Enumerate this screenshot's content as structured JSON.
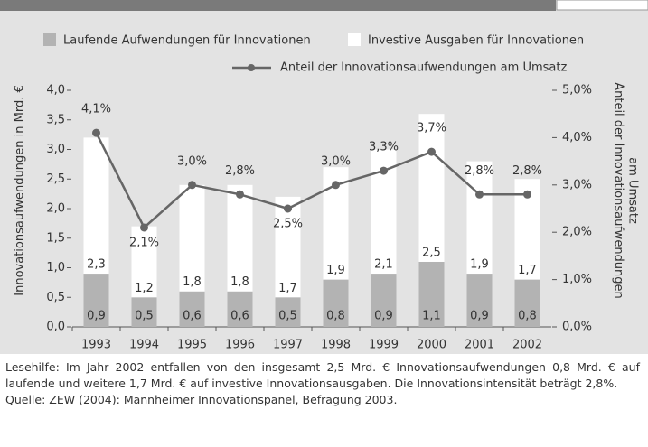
{
  "chart_data": {
    "type": "bar",
    "categories": [
      "1993",
      "1994",
      "1995",
      "1996",
      "1997",
      "1998",
      "1999",
      "2000",
      "2001",
      "2002"
    ],
    "series": [
      {
        "name": "Laufende Aufwendungen für Innovationen",
        "color": "#b3b3b3",
        "stack": true,
        "values": [
          0.9,
          0.5,
          0.6,
          0.6,
          0.5,
          0.8,
          0.9,
          1.1,
          0.9,
          0.8
        ],
        "value_labels": [
          "0,9",
          "0,5",
          "0,6",
          "0,6",
          "0,5",
          "0,8",
          "0,9",
          "1,1",
          "0,9",
          "0,8"
        ]
      },
      {
        "name": "Investive Ausgaben für Innovationen",
        "color": "#ffffff",
        "stack": true,
        "values": [
          2.3,
          1.2,
          1.8,
          1.8,
          1.7,
          1.9,
          2.1,
          2.5,
          1.9,
          1.7
        ],
        "value_labels": [
          "2,3",
          "1,2",
          "1,8",
          "1,8",
          "1,7",
          "1,9",
          "2,1",
          "2,5",
          "1,9",
          "1,7"
        ]
      },
      {
        "name": "Anteil der Innovationsaufwendungen am Umsatz",
        "color": "#666666",
        "type": "line",
        "axis": "y2",
        "values": [
          4.1,
          2.1,
          3.0,
          2.8,
          2.5,
          3.0,
          3.3,
          3.7,
          2.8,
          2.8
        ],
        "value_labels": [
          "4,1%",
          "2,1%",
          "3,0%",
          "2,8%",
          "2,5%",
          "3,0%",
          "3,3%",
          "3,7%",
          "2,8%",
          "2,8%"
        ]
      }
    ],
    "ylabel": "Innovationsaufwendungen in Mrd. €",
    "y2label": [
      "Anteil der Innovationsaufwendungen",
      "am Umsatz"
    ],
    "ylim": [
      0,
      4
    ],
    "yticks": [
      {
        "value": 0,
        "label": "0,0"
      },
      {
        "value": 0.5,
        "label": "0,5"
      },
      {
        "value": 1,
        "label": "1,0"
      },
      {
        "value": 1.5,
        "label": "1,5"
      },
      {
        "value": 2,
        "label": "2,0"
      },
      {
        "value": 2.5,
        "label": "2,5"
      },
      {
        "value": 3,
        "label": "3,0"
      },
      {
        "value": 3.5,
        "label": "3,5"
      },
      {
        "value": 4,
        "label": "4,0"
      }
    ],
    "y2lim": [
      0,
      5
    ],
    "y2ticks": [
      {
        "value": 0,
        "label": "0,0%"
      },
      {
        "value": 1,
        "label": "1,0%"
      },
      {
        "value": 2,
        "label": "2,0%"
      },
      {
        "value": 3,
        "label": "3,0%"
      },
      {
        "value": 4,
        "label": "4,0%"
      },
      {
        "value": 5,
        "label": "5,0%"
      }
    ],
    "caption": "Lesehilfe: Im Jahr 2002 entfallen von den insgesamt 2,5 Mrd. € Innovationsaufwendungen 0,8 Mrd. € auf laufende und weitere 1,7 Mrd. € auf investive Innovationsausgaben. Die Innovationsintensität beträgt 2,8%.",
    "source": "Quelle: ZEW (2004): Mannheimer Innovationspanel, Befragung 2003."
  }
}
